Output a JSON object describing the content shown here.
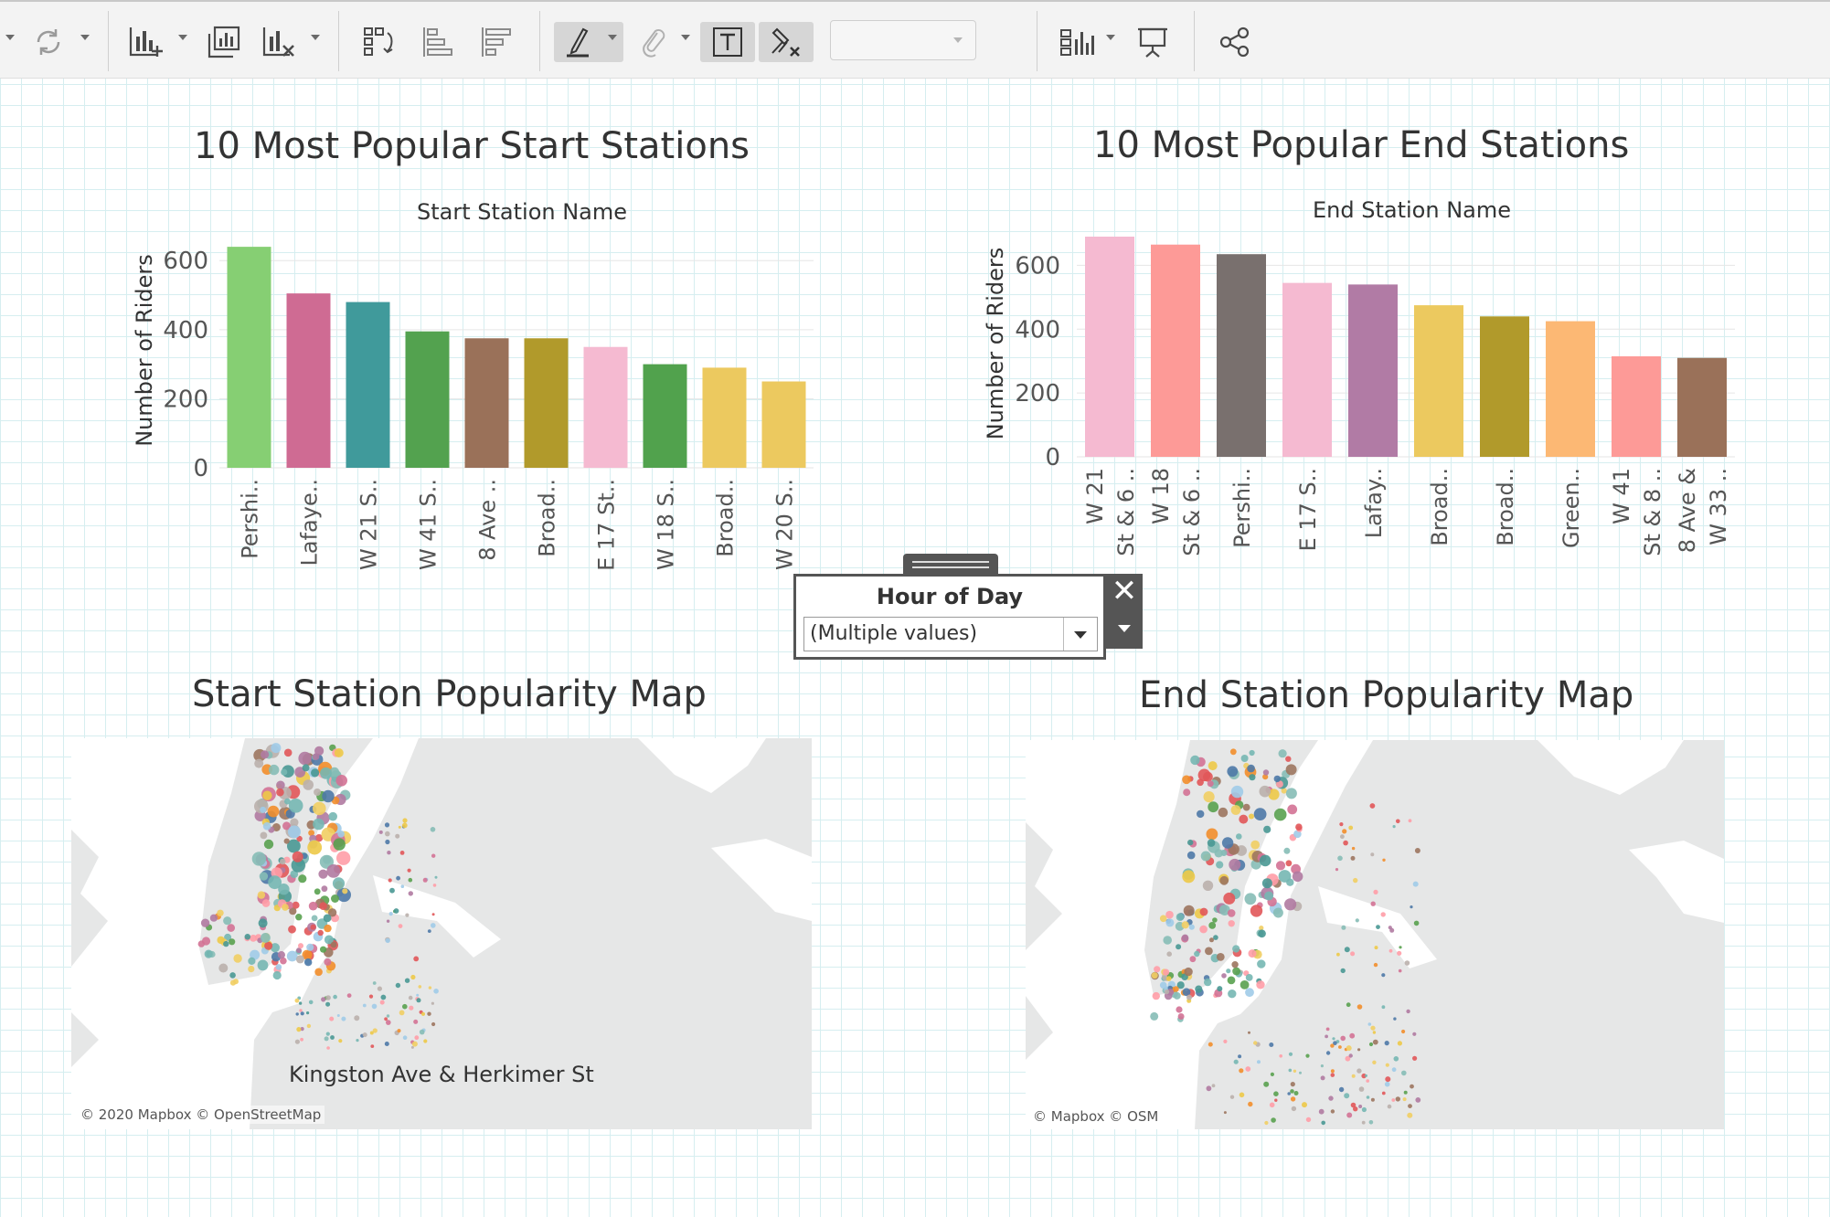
{
  "toolbar": {
    "icons": [
      "sync-icon",
      "new-worksheet-icon",
      "duplicate-sheet-icon",
      "clear-sheet-icon",
      "swap-icon",
      "sort-ascending-icon",
      "sort-descending-icon",
      "highlight-icon",
      "group-icon",
      "label-icon",
      "pin-icon",
      "show-me-icon",
      "presentation-icon",
      "share-icon"
    ],
    "dropdown_value": ""
  },
  "charts": {
    "start": {
      "title": "10 Most Popular Start Stations",
      "axis_top": "Start Station Name",
      "color_hex": [
        "#86cf73",
        "#cf6b93",
        "#409a9b",
        "#53a24f",
        "#9a7159",
        "#b19a2b",
        "#f5bad1",
        "#51a24d",
        "#ecc95f",
        "#ecc95f"
      ]
    },
    "end": {
      "title": "10 Most Popular End Stations",
      "axis_top": "End Station Name",
      "color_hex": [
        "#f5bad1",
        "#fd9a97",
        "#79706e",
        "#f5bad1",
        "#b17ba5",
        "#ecc95f",
        "#b19a2b",
        "#fcb874",
        "#fd9a97",
        "#9a7159"
      ]
    }
  },
  "chart_data": [
    {
      "type": "bar",
      "title": "10 Most Popular Start Stations",
      "xlabel": "Start Station Name",
      "ylabel": "Number of Riders",
      "categories": [
        "Pershi..",
        "Lafaye..",
        "W 21 S..",
        "W 41 S..",
        "8 Ave ..",
        "Broad..",
        "E 17 St..",
        "W 18 S..",
        "Broad..",
        "W 20 S.."
      ],
      "values": [
        640,
        505,
        480,
        395,
        375,
        375,
        350,
        300,
        290,
        250
      ],
      "ylim": [
        0,
        680
      ],
      "yticks": [
        0,
        200,
        400,
        600
      ]
    },
    {
      "type": "bar",
      "title": "10 Most Popular End Stations",
      "xlabel": "End Station Name",
      "ylabel": "Number of Riders",
      "categories": [
        [
          "W 21",
          "St & 6 .."
        ],
        [
          "W 18",
          "St & 6 .."
        ],
        [
          "Pershi.."
        ],
        [
          "E 17 S.."
        ],
        [
          "Lafay.."
        ],
        [
          "Broad.."
        ],
        [
          "Broad.."
        ],
        [
          "Green.."
        ],
        [
          "W 41",
          "St & 8 .."
        ],
        [
          "8 Ave &",
          "W 33 .."
        ]
      ],
      "values": [
        690,
        665,
        635,
        545,
        540,
        475,
        440,
        425,
        315,
        310
      ],
      "ylim": [
        0,
        710
      ],
      "yticks": [
        0,
        200,
        400,
        600
      ]
    }
  ],
  "filter": {
    "title": "Hour of Day",
    "value": "(Multiple values)",
    "close_glyph": "✕"
  },
  "maps": {
    "start": {
      "title": "Start Station Popularity Map",
      "credit": "© 2020 Mapbox © OpenStreetMap",
      "tooltip_label": "Kingston Ave & Herkimer St"
    },
    "end": {
      "title": "End Station Popularity Map",
      "credit": "© Mapbox © OSM"
    }
  }
}
